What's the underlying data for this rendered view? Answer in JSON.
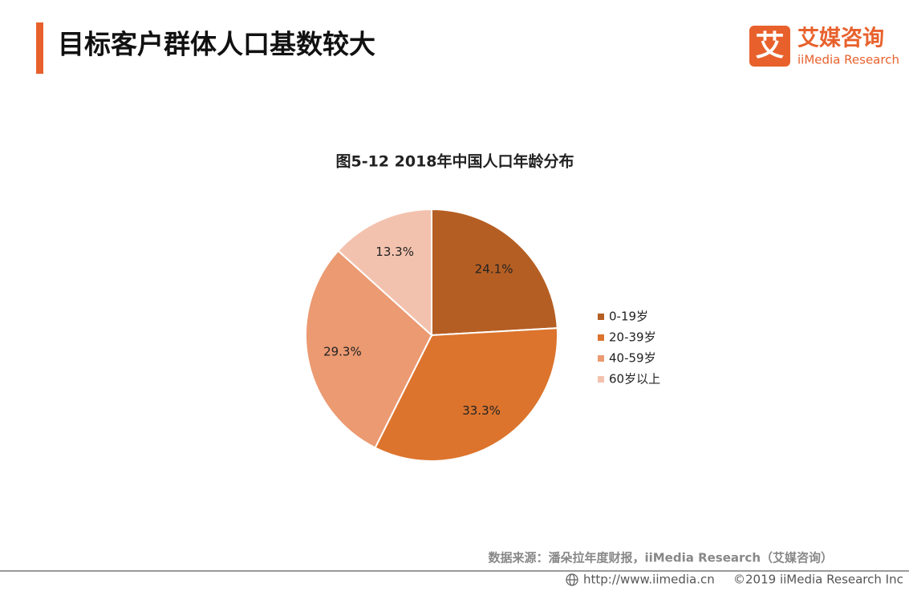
{
  "header": {
    "title": "目标客户群体人口基数较大"
  },
  "logo": {
    "icon": "艾",
    "name": "艾媒咨询",
    "english": "iiMedia Research"
  },
  "chart_data": {
    "type": "pie",
    "title": "图5-12 2018年中国人口年龄分布",
    "categories": [
      "0-19岁",
      "20-39岁",
      "40-59岁",
      "60岁以上"
    ],
    "values": [
      24.1,
      33.3,
      29.3,
      13.3
    ],
    "value_labels": [
      "24.1%",
      "33.3%",
      "29.3%",
      "13.3%"
    ],
    "colors": [
      "#b55e23",
      "#dc742d",
      "#eb9a72",
      "#f3c2ae"
    ],
    "legend": "right"
  },
  "footer": {
    "source": "数据来源：潘朵拉年度财报，iiMedia Research（艾媒咨询）",
    "url": "http://www.iimedia.cn",
    "copyright": "©2019  iiMedia Research  Inc"
  }
}
